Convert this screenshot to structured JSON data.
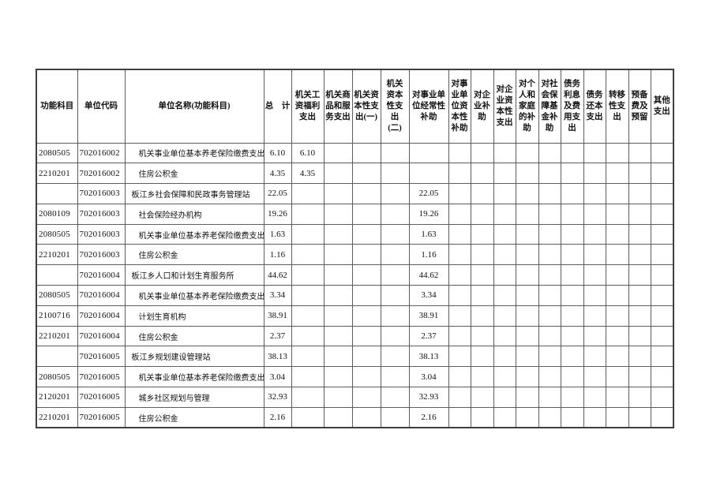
{
  "page": {
    "background_color": "#ffffff",
    "text_color": "#111111",
    "grid_line_color": "#5d5d5d"
  },
  "table": {
    "columns": [
      {
        "key": "func_code",
        "label": "功能科目"
      },
      {
        "key": "unit_code",
        "label": "单位代码"
      },
      {
        "key": "unit_name",
        "label": "单位名称(功能科目)"
      },
      {
        "key": "total",
        "label": "总　计"
      },
      {
        "key": "wage_welfare",
        "label": "机关工\n资福利\n支出"
      },
      {
        "key": "goods_services",
        "label": "机关商\n品和服\n务支出"
      },
      {
        "key": "capital_1",
        "label": "机关资\n本性支\n出(一)"
      },
      {
        "key": "capital_2",
        "label": "机关\n资本\n性支\n出\n(二)"
      },
      {
        "key": "inst_regular",
        "label": "对事业单\n位经常性\n补助"
      },
      {
        "key": "inst_capital",
        "label": "对事\n业单\n位资\n本性\n补助"
      },
      {
        "key": "ent_subsidy",
        "label": "对企\n业补\n助"
      },
      {
        "key": "ent_capital",
        "label": "对企\n业资\n本性\n支出"
      },
      {
        "key": "personal_family",
        "label": "对个\n人和\n家庭\n的补\n助"
      },
      {
        "key": "social_security",
        "label": "对社\n会保\n障基\n金补\n助"
      },
      {
        "key": "debt_interest",
        "label": "债务\n利息\n及费\n用支\n出"
      },
      {
        "key": "debt_principal",
        "label": "债务\n还本\n支出"
      },
      {
        "key": "transfer",
        "label": "转移\n性支\n出"
      },
      {
        "key": "reserve",
        "label": "预备\n费及\n预留"
      },
      {
        "key": "other",
        "label": "其他\n支出"
      }
    ],
    "rows": [
      {
        "type": "detail",
        "cells": [
          "2080505",
          "702016002",
          "机关事业单位基本养老保险缴费支出",
          "6.10",
          "6.10",
          "",
          "",
          "",
          "",
          "",
          "",
          "",
          "",
          "",
          "",
          "",
          "",
          "",
          ""
        ]
      },
      {
        "type": "detail",
        "cells": [
          "2210201",
          "702016002",
          "住房公积金",
          "4.35",
          "4.35",
          "",
          "",
          "",
          "",
          "",
          "",
          "",
          "",
          "",
          "",
          "",
          "",
          "",
          ""
        ]
      },
      {
        "type": "unit",
        "cells": [
          "",
          "702016003",
          "板江乡社会保障和民政事务管理站",
          "22.05",
          "",
          "",
          "",
          "",
          "22.05",
          "",
          "",
          "",
          "",
          "",
          "",
          "",
          "",
          "",
          ""
        ]
      },
      {
        "type": "detail",
        "cells": [
          "2080109",
          "702016003",
          "社会保险经办机构",
          "19.26",
          "",
          "",
          "",
          "",
          "19.26",
          "",
          "",
          "",
          "",
          "",
          "",
          "",
          "",
          "",
          ""
        ]
      },
      {
        "type": "detail",
        "cells": [
          "2080505",
          "702016003",
          "机关事业单位基本养老保险缴费支出",
          "1.63",
          "",
          "",
          "",
          "",
          "1.63",
          "",
          "",
          "",
          "",
          "",
          "",
          "",
          "",
          "",
          ""
        ]
      },
      {
        "type": "detail",
        "cells": [
          "2210201",
          "702016003",
          "住房公积金",
          "1.16",
          "",
          "",
          "",
          "",
          "1.16",
          "",
          "",
          "",
          "",
          "",
          "",
          "",
          "",
          "",
          ""
        ]
      },
      {
        "type": "unit",
        "cells": [
          "",
          "702016004",
          "板江乡人口和计划生育服务所",
          "44.62",
          "",
          "",
          "",
          "",
          "44.62",
          "",
          "",
          "",
          "",
          "",
          "",
          "",
          "",
          "",
          ""
        ]
      },
      {
        "type": "detail",
        "cells": [
          "2080505",
          "702016004",
          "机关事业单位基本养老保险缴费支出",
          "3.34",
          "",
          "",
          "",
          "",
          "3.34",
          "",
          "",
          "",
          "",
          "",
          "",
          "",
          "",
          "",
          ""
        ]
      },
      {
        "type": "detail",
        "cells": [
          "2100716",
          "702016004",
          "计划生育机构",
          "38.91",
          "",
          "",
          "",
          "",
          "38.91",
          "",
          "",
          "",
          "",
          "",
          "",
          "",
          "",
          "",
          ""
        ]
      },
      {
        "type": "detail",
        "cells": [
          "2210201",
          "702016004",
          "住房公积金",
          "2.37",
          "",
          "",
          "",
          "",
          "2.37",
          "",
          "",
          "",
          "",
          "",
          "",
          "",
          "",
          "",
          ""
        ]
      },
      {
        "type": "unit",
        "cells": [
          "",
          "702016005",
          "板江乡规划建设管理站",
          "38.13",
          "",
          "",
          "",
          "",
          "38.13",
          "",
          "",
          "",
          "",
          "",
          "",
          "",
          "",
          "",
          ""
        ]
      },
      {
        "type": "detail",
        "cells": [
          "2080505",
          "702016005",
          "机关事业单位基本养老保险缴费支出",
          "3.04",
          "",
          "",
          "",
          "",
          "3.04",
          "",
          "",
          "",
          "",
          "",
          "",
          "",
          "",
          "",
          ""
        ]
      },
      {
        "type": "detail",
        "cells": [
          "2120201",
          "702016005",
          "城乡社区规划与管理",
          "32.93",
          "",
          "",
          "",
          "",
          "32.93",
          "",
          "",
          "",
          "",
          "",
          "",
          "",
          "",
          "",
          ""
        ]
      },
      {
        "type": "detail",
        "cells": [
          "2210201",
          "702016005",
          "住房公积金",
          "2.16",
          "",
          "",
          "",
          "",
          "2.16",
          "",
          "",
          "",
          "",
          "",
          "",
          "",
          "",
          "",
          ""
        ]
      }
    ]
  }
}
